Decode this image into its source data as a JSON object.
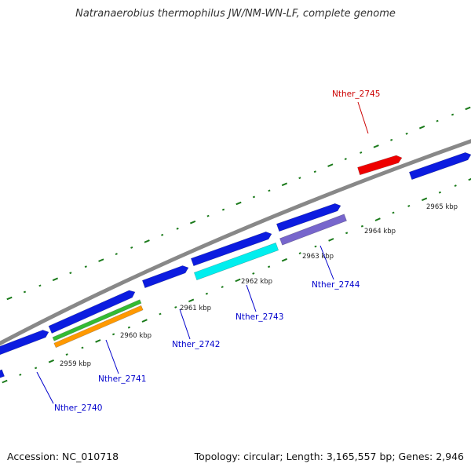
{
  "title": "Natranaerobius thermophilus JW/NM-WN-LF, complete genome",
  "accession_text": "Accession: NC_010718",
  "summary_text": "Topology: circular; Length: 3,165,557 bp; Genes: 2,946",
  "ticks": [
    {
      "label": "2959 kbp"
    },
    {
      "label": "2960 kbp"
    },
    {
      "label": "2961 kbp"
    },
    {
      "label": "2962 kbp"
    },
    {
      "label": "2963 kbp"
    },
    {
      "label": "2964 kbp"
    },
    {
      "label": "2965 kbp"
    }
  ],
  "genes": [
    {
      "name": "Nther_2740",
      "color": "#0000cc"
    },
    {
      "name": "Nther_2741",
      "color": "#0000cc"
    },
    {
      "name": "Nther_2742",
      "color": "#0000cc"
    },
    {
      "name": "Nther_2743",
      "color": "#0000cc"
    },
    {
      "name": "Nther_2744",
      "color": "#0000cc"
    },
    {
      "name": "Nther_2745",
      "color": "#cc0000"
    }
  ],
  "colors": {
    "backbone": "#888888",
    "tick": "#1a7a1a",
    "forward_cds": "#0c1ce0",
    "reverse_red": "#ee0000",
    "green": "#33bb33",
    "orange": "#ff9900",
    "cyan": "#00eeee",
    "purple": "#7766cc"
  }
}
